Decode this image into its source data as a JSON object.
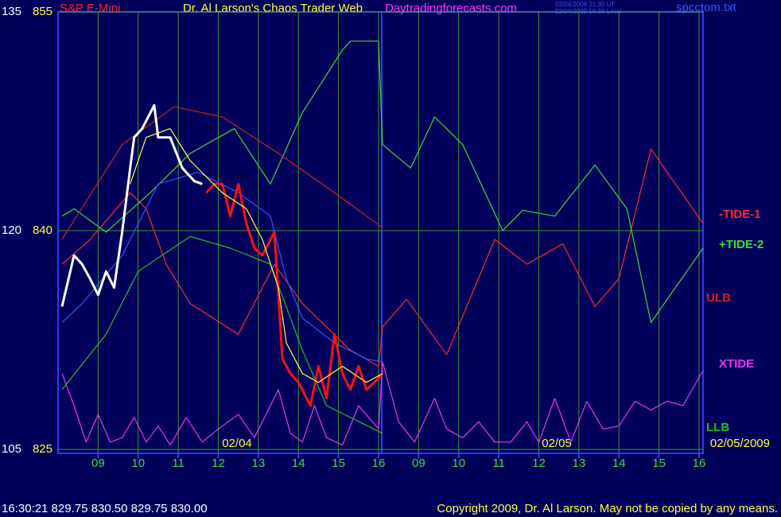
{
  "chart_data": {
    "type": "line",
    "title": "Dr. Al Larson's Chaos Trader Web",
    "symbol": "S&P E-Mini",
    "site": "Daytradingforecasts.com",
    "timestamps": [
      "02/04/2009 21:30 UT",
      "02/04/2009 16:30 Local"
    ],
    "file": "spcctom.txt",
    "date_labels": [
      "02/04",
      "02/05",
      "02/05/2009"
    ],
    "status_line": "16:30:21  829.75  830.50  829.75  830.00",
    "copyright": "Copyright 2009, Dr. Al Larson. May not be copied by any means.",
    "xlim": [
      0,
      16.1
    ],
    "xticks": [
      {
        "value": 1,
        "label": "09"
      },
      {
        "value": 2,
        "label": "10"
      },
      {
        "value": 3,
        "label": "11"
      },
      {
        "value": 4,
        "label": "12"
      },
      {
        "value": 5,
        "label": "13"
      },
      {
        "value": 6,
        "label": "14"
      },
      {
        "value": 7,
        "label": "15"
      },
      {
        "value": 8,
        "label": "16"
      },
      {
        "value": 9,
        "label": "09"
      },
      {
        "value": 10,
        "label": "10"
      },
      {
        "value": 11,
        "label": "11"
      },
      {
        "value": 12,
        "label": "12"
      },
      {
        "value": 13,
        "label": "13"
      },
      {
        "value": 14,
        "label": "14"
      },
      {
        "value": 15,
        "label": "15"
      },
      {
        "value": 16,
        "label": "16"
      }
    ],
    "ylim": [
      825,
      855
    ],
    "yticks": [
      825,
      840,
      855
    ],
    "y2lim": [
      105,
      135
    ],
    "y2ticks": [
      105,
      120,
      135
    ],
    "grid": true,
    "series": [
      {
        "name": "-TIDE-1",
        "color": "#ff2a2a",
        "x": [
          0.1,
          0.8,
          1.8,
          2.2,
          2.7,
          3.3,
          4.5,
          5.4,
          6.1,
          7.3,
          8.0,
          8.1,
          8.7,
          9.7,
          10.9,
          11.7,
          12.6,
          13.4,
          14.0,
          14.8,
          16.1
        ],
        "values": [
          837.7,
          839.4,
          842.6,
          841.5,
          837.7,
          835.0,
          832.9,
          837.7,
          835.0,
          831.8,
          830.7,
          833.4,
          835.3,
          831.5,
          839.4,
          837.7,
          839.1,
          834.8,
          836.7,
          845.6,
          840.5
        ]
      },
      {
        "name": "+TIDE-2",
        "color": "#33e033",
        "x": [
          0.1,
          0.4,
          1.2,
          2.3,
          3.3,
          4.4,
          5.3,
          6.1,
          7.1,
          7.3,
          8.0,
          8.1,
          8.8,
          9.4,
          10.1,
          11.1,
          11.6,
          12.4,
          13.4,
          14.2,
          14.8,
          16.1
        ],
        "values": [
          841.0,
          841.5,
          839.9,
          842.6,
          845.3,
          847.0,
          843.2,
          848.1,
          852.4,
          853.0,
          853.0,
          845.9,
          844.3,
          847.8,
          845.9,
          840.0,
          841.4,
          841.0,
          844.5,
          841.5,
          833.7,
          838.8
        ]
      },
      {
        "name": "ULB",
        "color": "#d02020",
        "x": [
          0.1,
          1.6,
          2.9,
          4.1,
          5.5,
          6.9,
          8.1
        ],
        "values": [
          839.4,
          845.9,
          848.5,
          847.8,
          845.3,
          842.6,
          840.2
        ]
      },
      {
        "name": "XTIDE",
        "color": "#ee33ee",
        "x": [
          0.1,
          0.4,
          0.7,
          1.0,
          1.3,
          1.6,
          1.9,
          2.2,
          2.5,
          2.8,
          3.2,
          3.6,
          4.0,
          4.5,
          4.9,
          5.5,
          5.8,
          6.1,
          6.4,
          6.7,
          7.1,
          7.5,
          8.0,
          8.1,
          8.5,
          8.9,
          9.4,
          9.7,
          10.1,
          10.5,
          10.9,
          11.3,
          11.7,
          12.0,
          12.4,
          12.8,
          13.2,
          13.6,
          14.0,
          14.4,
          14.8,
          15.2,
          15.6,
          16.1
        ],
        "values": [
          830.2,
          828.0,
          825.5,
          827.4,
          825.5,
          825.8,
          827.2,
          825.5,
          826.6,
          825.3,
          827.2,
          825.5,
          826.4,
          827.4,
          825.8,
          829.1,
          826.1,
          825.5,
          828.0,
          825.8,
          825.3,
          828.0,
          826.4,
          831.0,
          826.9,
          825.5,
          828.5,
          826.4,
          825.8,
          826.9,
          825.5,
          825.5,
          826.9,
          825.5,
          828.5,
          825.5,
          828.3,
          826.4,
          826.6,
          828.3,
          827.7,
          828.3,
          828.0,
          830.4
        ]
      },
      {
        "name": "LLB",
        "color": "#22c022",
        "x": [
          0.1,
          1.2,
          2.0,
          3.3,
          4.3,
          5.3,
          6.1,
          6.7,
          8.1
        ],
        "values": [
          829.1,
          832.9,
          837.2,
          839.6,
          838.8,
          837.7,
          831.8,
          828.0,
          826.1
        ]
      },
      {
        "color": "#3355ff",
        "x": [
          0.1,
          0.6,
          1.6,
          2.5,
          3.5,
          4.5,
          5.3,
          5.7,
          6.1,
          6.9,
          7.7,
          8.1
        ],
        "values": [
          833.7,
          835.0,
          838.3,
          843.2,
          844.0,
          842.6,
          841.0,
          836.7,
          834.0,
          832.3,
          831.2,
          831.0
        ]
      },
      {
        "color": "#ffffff",
        "x": [
          0.1,
          0.4,
          0.6,
          0.8,
          1.0,
          1.2,
          1.4,
          1.6,
          1.8,
          1.9,
          2.1,
          2.4,
          2.5,
          2.8,
          3.1,
          3.4,
          3.6
        ],
        "values": [
          834.8,
          838.3,
          837.7,
          836.7,
          835.6,
          837.2,
          836.1,
          839.9,
          844.3,
          846.4,
          847.0,
          848.6,
          846.4,
          846.4,
          844.3,
          843.4,
          843.2
        ]
      },
      {
        "color": "#ff1010",
        "x": [
          3.7,
          3.9,
          4.1,
          4.3,
          4.5,
          4.7,
          4.9,
          5.1,
          5.4,
          5.5,
          5.6,
          5.8,
          6.0,
          6.3,
          6.5,
          6.7,
          6.9,
          7.1,
          7.3,
          7.5,
          7.7,
          7.9,
          8.1
        ],
        "values": [
          842.6,
          843.2,
          843.2,
          841.0,
          843.2,
          840.5,
          838.8,
          838.3,
          839.9,
          835.6,
          831.2,
          830.2,
          829.6,
          828.0,
          830.7,
          828.5,
          832.9,
          830.2,
          829.1,
          830.7,
          829.1,
          829.6,
          830.2
        ]
      },
      {
        "color": "#ffff44",
        "x": [
          1.8,
          2.2,
          2.8,
          3.3,
          4.1,
          4.7,
          5.1,
          5.5,
          5.7,
          6.1,
          6.5,
          7.1,
          7.7,
          8.1
        ],
        "values": [
          843.2,
          846.4,
          847.0,
          844.8,
          842.6,
          841.5,
          839.4,
          836.1,
          832.3,
          830.2,
          829.6,
          830.7,
          829.6,
          830.2
        ]
      }
    ]
  }
}
